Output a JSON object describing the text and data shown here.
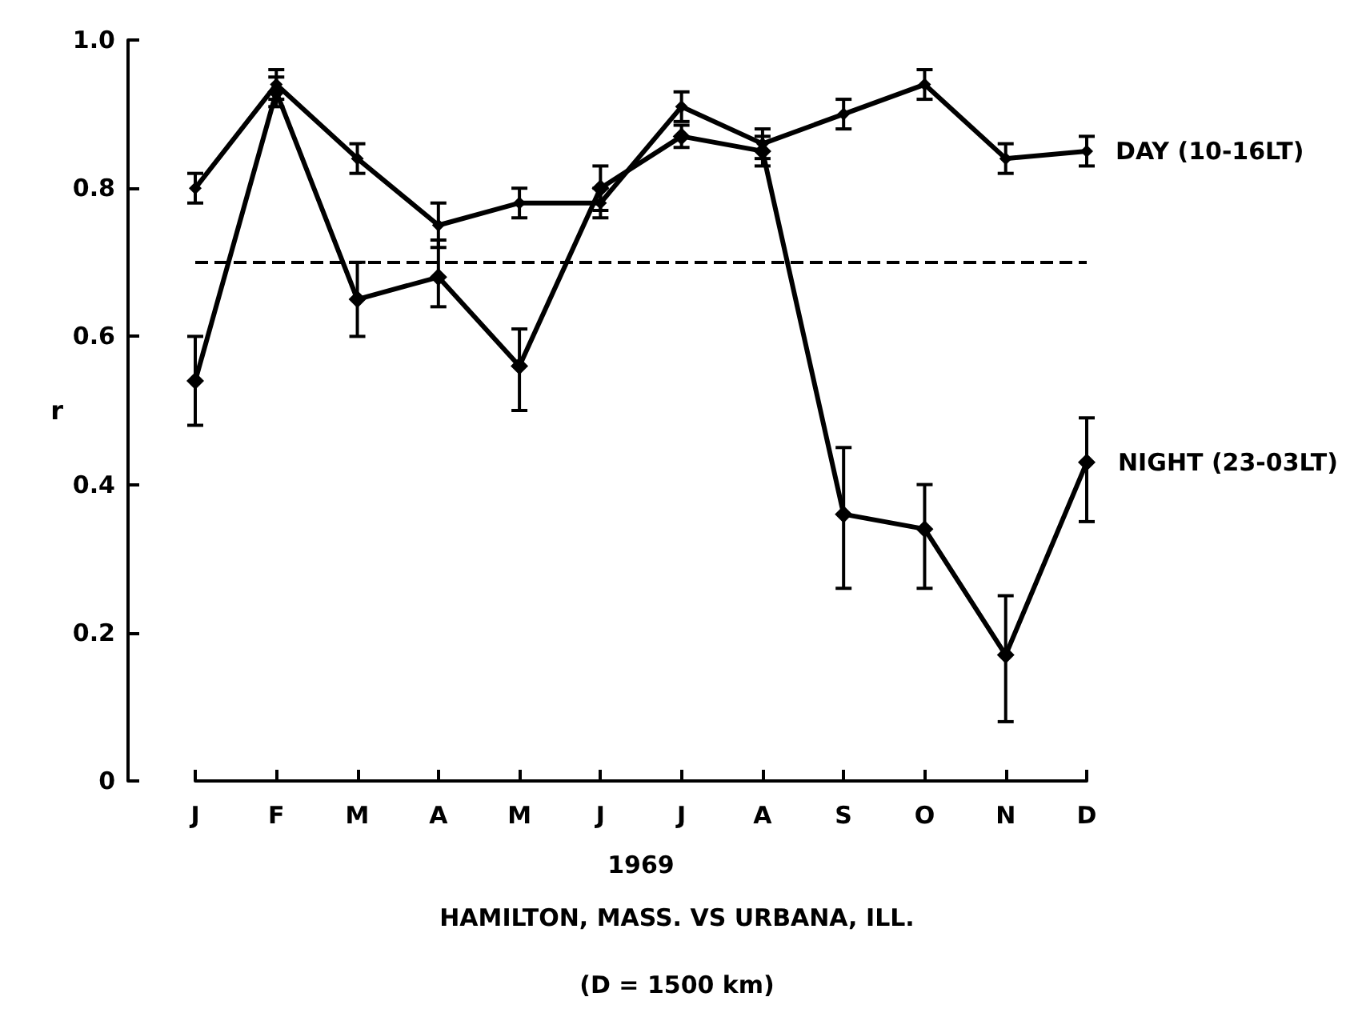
{
  "chart_data": {
    "type": "line",
    "xlabel": "1969",
    "ylabel": "r",
    "categories": [
      "J",
      "F",
      "M",
      "A",
      "M",
      "J",
      "J",
      "A",
      "S",
      "O",
      "N",
      "D"
    ],
    "series": [
      {
        "name": "DAY (10-16LT)",
        "color": "#000000",
        "values": [
          0.8,
          0.94,
          0.84,
          0.75,
          0.78,
          0.78,
          0.91,
          0.86,
          0.9,
          0.94,
          0.84,
          0.85
        ],
        "errors": [
          0.02,
          0.02,
          0.02,
          0.03,
          0.02,
          0.02,
          0.02,
          0.02,
          0.02,
          0.02,
          0.02,
          0.02
        ]
      },
      {
        "name": "NIGHT (23-03LT)",
        "color": "#000000",
        "values": [
          0.54,
          0.93,
          0.65,
          0.68,
          0.56,
          0.8,
          0.87,
          0.85,
          0.36,
          0.34,
          0.17,
          0.43
        ],
        "errors": [
          [
            0.48,
            0.6
          ],
          0.02,
          [
            0.6,
            0.7
          ],
          [
            0.64,
            0.73
          ],
          [
            0.5,
            0.61
          ],
          0.03,
          0.015,
          0.02,
          [
            0.26,
            0.45
          ],
          [
            0.26,
            0.4
          ],
          [
            0.08,
            0.25
          ],
          [
            0.35,
            0.49
          ]
        ]
      }
    ],
    "ylim": [
      0,
      1
    ],
    "yticks": [
      0,
      0.2,
      0.4,
      0.6,
      0.8,
      {
        "value": 1,
        "label": "1.0"
      }
    ],
    "ref_lines": [
      {
        "axis": "y",
        "value": 0.7,
        "line_style": "dashed"
      }
    ],
    "marker": "diamond",
    "line_style": "solid",
    "grid": false,
    "legend": false,
    "annotations": [
      "HAMILTON, MASS. VS URBANA, ILL.",
      "(D = 1500 km)"
    ]
  }
}
